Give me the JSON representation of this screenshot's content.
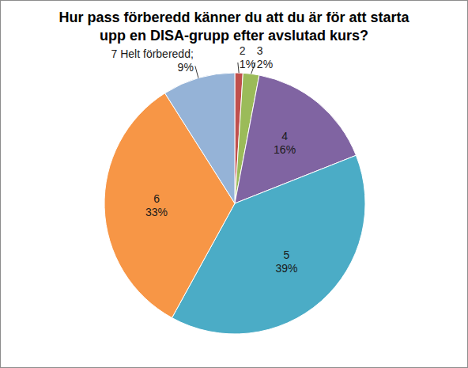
{
  "chart_data": {
    "type": "pie",
    "title": "Hur pass förberedd känner du att du är för att starta upp en DISA-grupp efter avslutad kurs?",
    "categories": [
      "2",
      "3",
      "4",
      "5",
      "6",
      "7 Helt förberedd;"
    ],
    "values": [
      1,
      2,
      16,
      39,
      33,
      9
    ],
    "value_labels": [
      "1%",
      "2%",
      "16%",
      "39%",
      "33%",
      "9%"
    ],
    "colors": [
      "#c0504d",
      "#9bbb59",
      "#8064a2",
      "#4bacc6",
      "#f79646",
      "#95b3d7"
    ],
    "data_labels": true
  }
}
